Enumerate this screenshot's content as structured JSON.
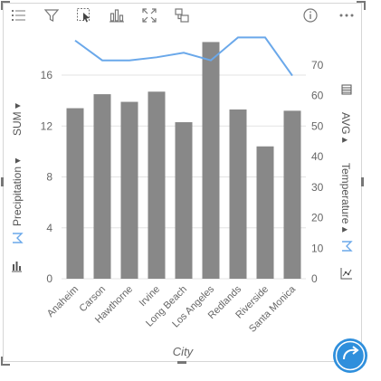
{
  "toolbar": {
    "icons": [
      "list-icon",
      "filter-icon",
      "select-icon",
      "bar-chart-type-icon",
      "expand-icon",
      "visual-type-icon",
      "info-icon",
      "more-options-icon"
    ]
  },
  "axes": {
    "left_aggregation": "SUM",
    "left_field": "Precipitation",
    "right_aggregation": "AVG",
    "right_field": "Temperature",
    "x_field": "City"
  },
  "chart_data": {
    "type": "bar",
    "categories": [
      "Anaheim",
      "Carson",
      "Hawthorne",
      "Irvine",
      "Long Beach",
      "Los Angeles",
      "Redlands",
      "Riverside",
      "Santa Monica"
    ],
    "series": [
      {
        "values": [
          13.4,
          14.5,
          13.9,
          14.7,
          12.3,
          18.6,
          13.3,
          10.4,
          13.2
        ],
        "axis": "left",
        "color": "#888888"
      },
      {
        "values": [
          78,
          71.5,
          71.5,
          72.5,
          74,
          71.5,
          79,
          79,
          66.5
        ],
        "axis": "right",
        "color": "#6aa8ea"
      }
    ],
    "xlabel": "City",
    "ylabel": "SUM Precipitation",
    "y2label": "AVG Temperature",
    "ylim": [
      0,
      19.2
    ],
    "yticks": [
      0,
      4,
      8,
      12,
      16
    ],
    "y2lim": [
      0,
      80
    ],
    "y2ticks": [
      0,
      10,
      20,
      30,
      40,
      50,
      60,
      70
    ],
    "grid": true,
    "colors": {
      "bar": "#888888",
      "line": "#6aa8ea",
      "grid": "#e3e3e3",
      "fab": "#2f8fdc"
    }
  }
}
